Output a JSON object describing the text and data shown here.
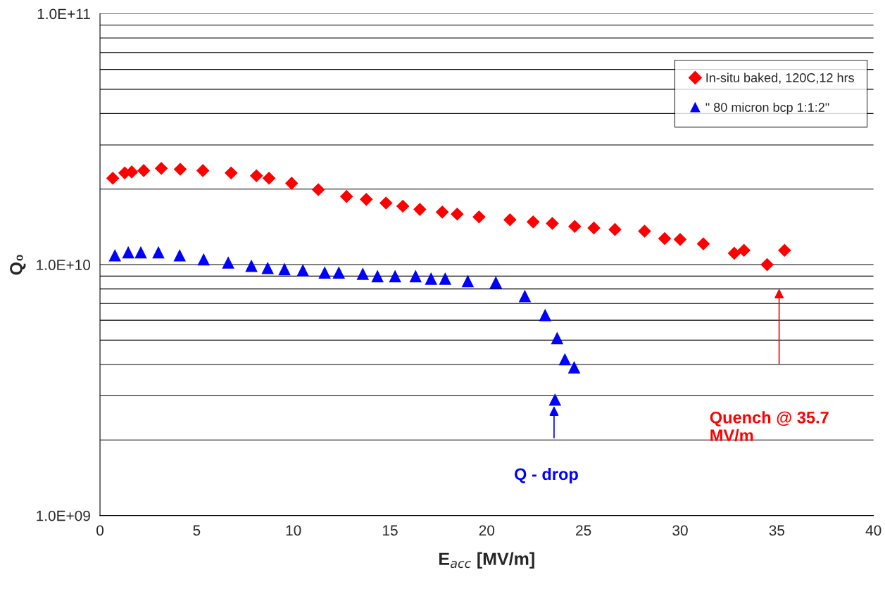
{
  "chart_data": {
    "type": "scatter",
    "xlabel": "E$_{acc}$ [MV/m]",
    "ylabel": "Q₀",
    "log": "y",
    "xlim": [
      0,
      40
    ],
    "xticks": [
      0,
      5,
      10,
      15,
      20,
      25,
      30,
      35,
      40
    ],
    "ylim": [
      1000000000.0,
      100000000000.0
    ],
    "yticks": [
      {
        "value": 1000000000.0,
        "label": "1.0E+09"
      },
      {
        "value": 10000000000.0,
        "label": "1.0E+10"
      },
      {
        "value": 100000000000.0,
        "label": "1.0E+11"
      }
    ],
    "grid": "y",
    "legend": "top right",
    "series": [
      {
        "name": "In-situ baked, 120C,12 hrs",
        "color": "#ff0000",
        "marker": "diamond",
        "x": [
          0.66,
          1.28,
          1.64,
          2.26,
          3.17,
          4.15,
          5.32,
          6.78,
          8.09,
          8.74,
          9.91,
          11.29,
          12.75,
          13.77,
          14.79,
          15.66,
          16.54,
          17.7,
          18.47,
          19.6,
          21.2,
          22.4,
          23.39,
          24.55,
          25.54,
          26.63,
          28.16,
          29.2,
          30.0,
          31.2,
          32.8,
          33.3,
          34.5,
          35.4
        ],
        "values": [
          22100000000.0,
          23200000000.0,
          23400000000.0,
          23700000000.0,
          24200000000.0,
          24000000000.0,
          23700000000.0,
          23200000000.0,
          22600000000.0,
          22100000000.0,
          21100000000.0,
          19900000000.0,
          18700000000.0,
          18200000000.0,
          17600000000.0,
          17100000000.0,
          16600000000.0,
          16200000000.0,
          15900000000.0,
          15500000000.0,
          15100000000.0,
          14800000000.0,
          14600000000.0,
          14200000000.0,
          14000000000.0,
          13800000000.0,
          13600000000.0,
          12700000000.0,
          12600000000.0,
          12100000000.0,
          11100000000.0,
          11400000000.0,
          10000000000.0,
          11400000000.0
        ]
      },
      {
        "name": "\" 80 micron bcp 1:1:2\"",
        "color": "#0000ff",
        "marker": "triangle",
        "x": [
          0.77,
          1.46,
          2.11,
          3.02,
          4.12,
          5.36,
          6.63,
          7.83,
          8.67,
          9.54,
          10.49,
          11.62,
          12.35,
          13.59,
          14.35,
          15.26,
          16.32,
          17.12,
          17.85,
          19.02,
          20.47,
          21.97,
          23.02,
          23.64,
          24.04,
          24.52,
          23.53
        ],
        "values": [
          10900000000.0,
          11200000000.0,
          11200000000.0,
          11200000000.0,
          10900000000.0,
          10500000000.0,
          10200000000.0,
          9900000000.0,
          9700000000.0,
          9600000000.0,
          9500000000.0,
          9300000000.0,
          9300000000.0,
          9200000000.0,
          9000000000.0,
          9000000000.0,
          9000000000.0,
          8800000000.0,
          8800000000.0,
          8600000000.0,
          8500000000.0,
          7500000000.0,
          6300000000.0,
          5100000000.0,
          4200000000.0,
          3900000000.0,
          2900000000.0
        ]
      }
    ],
    "annotations": [
      "Q - drop",
      "Quench @ 35.7\nMV/m"
    ]
  }
}
